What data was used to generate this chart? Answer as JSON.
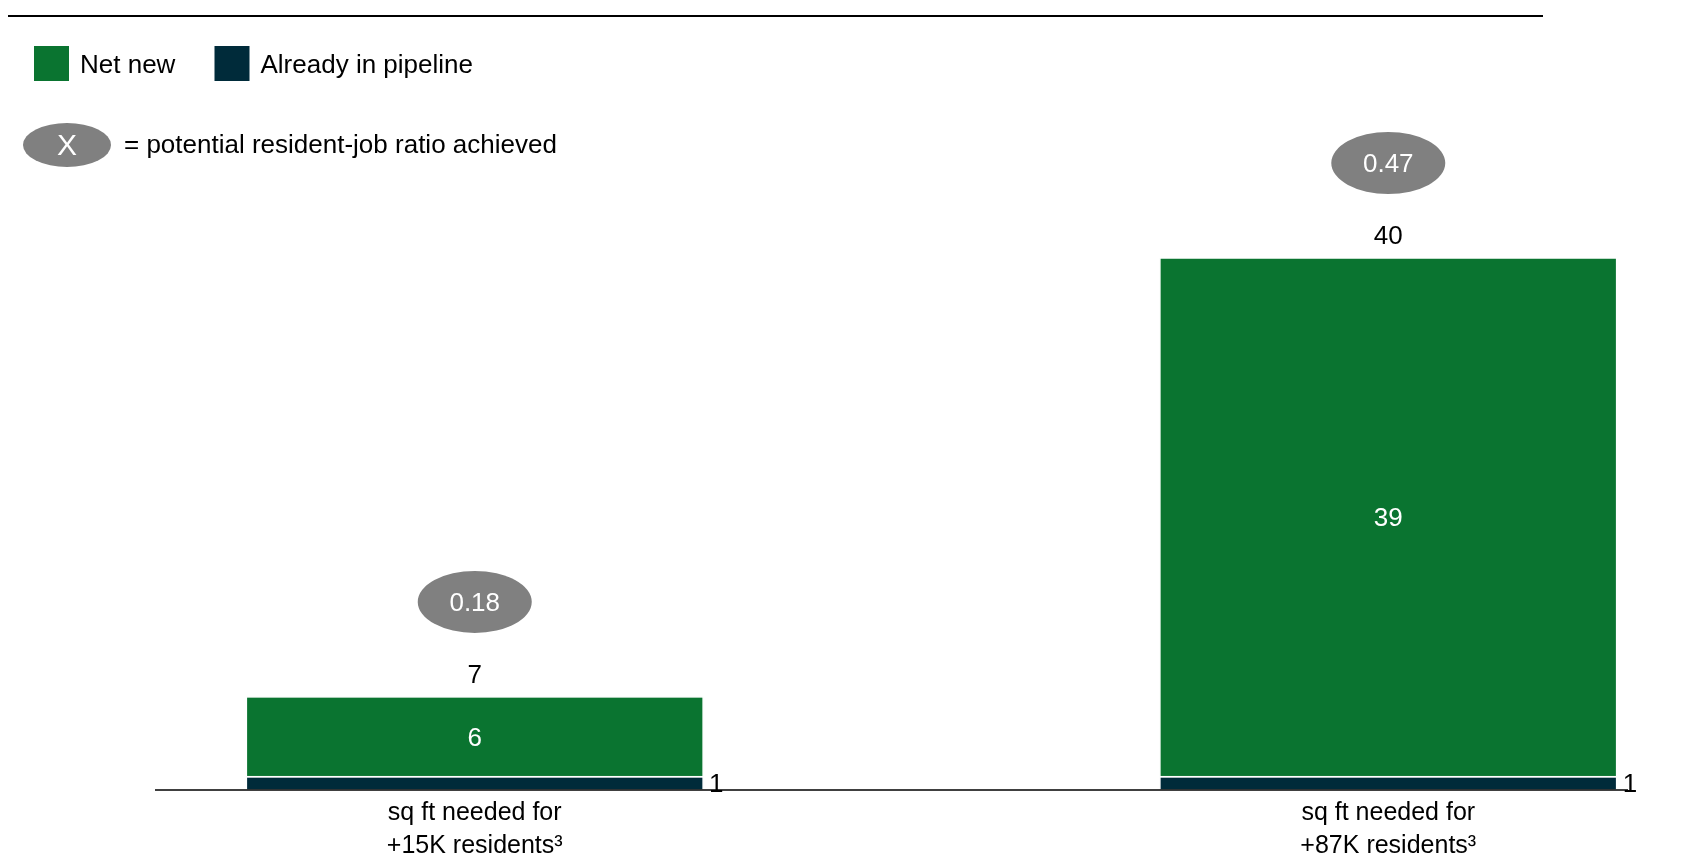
{
  "chart_data": {
    "type": "bar",
    "stacked": true,
    "categories": [
      "sq ft needed for +15K residents³",
      "sq ft needed for +87K residents³"
    ],
    "series": [
      {
        "name": "Already in pipeline",
        "color": "#002b3a",
        "values": [
          1,
          1
        ]
      },
      {
        "name": "Net new",
        "color": "#0a7430",
        "values": [
          6,
          39
        ]
      }
    ],
    "data_labels": true,
    "totals": [
      "7",
      "40"
    ],
    "legend": "top left",
    "annotations": [
      "X",
      "= potential resident-job ratio achieved",
      "0.18",
      "0.47"
    ]
  }
}
